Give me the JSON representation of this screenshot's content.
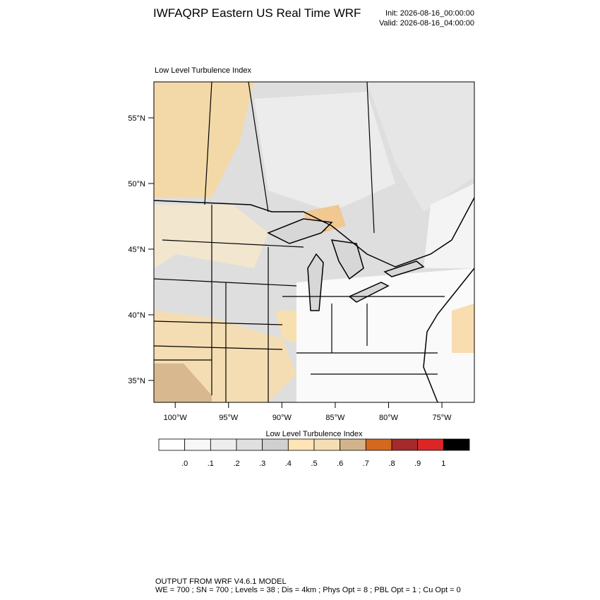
{
  "header": {
    "title": "IWFAQRP Eastern US Real Time WRF",
    "init": "Init: 2026-08-16_00:00:00",
    "valid": "Valid: 2026-08-16_04:00:00"
  },
  "map": {
    "subtitle": "Low Level Turbulence Index",
    "xlim": [
      -102,
      -71.96
    ],
    "ylim": [
      33.33,
      57.74
    ],
    "xticks": [
      {
        "value": -100,
        "label": "100°W"
      },
      {
        "value": -95,
        "label": "95°W"
      },
      {
        "value": -90,
        "label": "90°W"
      },
      {
        "value": -85,
        "label": "85°W"
      },
      {
        "value": -80,
        "label": "80°W"
      },
      {
        "value": -75,
        "label": "75°W"
      }
    ],
    "yticks": [
      {
        "value": 55,
        "label": "55°N"
      },
      {
        "value": 50,
        "label": "50°N"
      },
      {
        "value": 45,
        "label": "45°N"
      },
      {
        "value": 40,
        "label": "40°N"
      },
      {
        "value": 35,
        "label": "35°N"
      }
    ]
  },
  "colorbar": {
    "title": "Low Level Turbulence Index",
    "levels": [
      {
        "value": 0,
        "label": ".0"
      },
      {
        "value": 0.1,
        "label": ".1"
      },
      {
        "value": 0.2,
        "label": ".2"
      },
      {
        "value": 0.3,
        "label": ".3"
      },
      {
        "value": 0.4,
        "label": ".4"
      },
      {
        "value": 0.5,
        "label": ".5"
      },
      {
        "value": 0.6,
        "label": ".6"
      },
      {
        "value": 0.7,
        "label": ".7"
      },
      {
        "value": 0.8,
        "label": ".8"
      },
      {
        "value": 0.9,
        "label": ".9"
      },
      1
    ],
    "colors": [
      "#ffffff",
      "#f7f7f7",
      "#eeeeee",
      "#e0e0e0",
      "#d0d0d0",
      "#ffe4b5",
      "#f5deb3",
      "#d2b48c",
      "#d2691e",
      "#a52a2a",
      "#dc2626",
      "#000000"
    ]
  },
  "footer": {
    "line1": "OUTPUT FROM WRF V4.6.1 MODEL",
    "line2": "WE = 700 ; SN = 700 ; Levels = 38 ; Dis = 4km ; Phys Opt = 8 ; PBL Opt = 1 ; Cu Opt = 0"
  }
}
